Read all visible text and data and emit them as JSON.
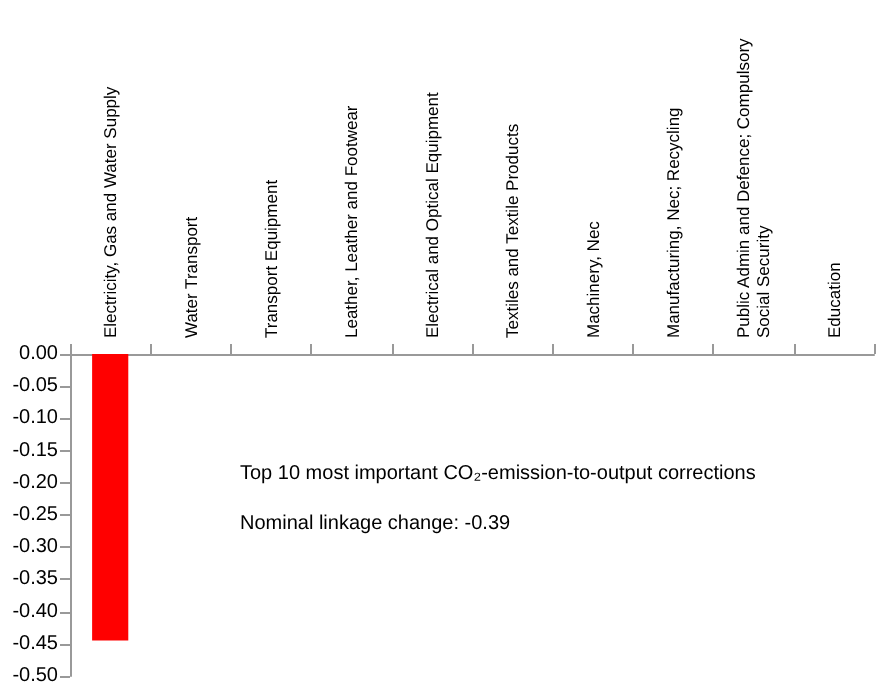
{
  "chart_data": {
    "type": "bar",
    "categories": [
      "Electricity, Gas and Water Supply",
      "Water Transport",
      "Transport Equipment",
      "Leather, Leather and Footwear",
      "Electrical and Optical Equipment",
      "Textiles and Textile Products",
      "Machinery, Nec",
      "Manufacturing, Nec; Recycling",
      "Public Admin and Defence; Compulsory Social Security",
      "Education"
    ],
    "values": [
      -0.445,
      0,
      0,
      0,
      0,
      0,
      0,
      0,
      0,
      0
    ],
    "color": "#ff0000",
    "ylim": [
      -0.5,
      0
    ],
    "yticks": [
      {
        "value": 0,
        "label": "0.00"
      },
      {
        "value": -0.05,
        "label": "-0.05"
      },
      {
        "value": -0.1,
        "label": "-0.10"
      },
      {
        "value": -0.15,
        "label": "-0.15"
      },
      {
        "value": -0.2,
        "label": "-0.20"
      },
      {
        "value": -0.25,
        "label": "-0.25"
      },
      {
        "value": -0.3,
        "label": "-0.30"
      },
      {
        "value": -0.35,
        "label": "-0.35"
      },
      {
        "value": -0.4,
        "label": "-0.40"
      },
      {
        "value": -0.45,
        "label": "-0.45"
      },
      {
        "value": -0.5,
        "label": "-0.50"
      }
    ],
    "grid": false,
    "annotations": [
      "Top 10 most important CO₂-emission-to-output corrections",
      "Nominal linkage change: -0.39"
    ]
  }
}
